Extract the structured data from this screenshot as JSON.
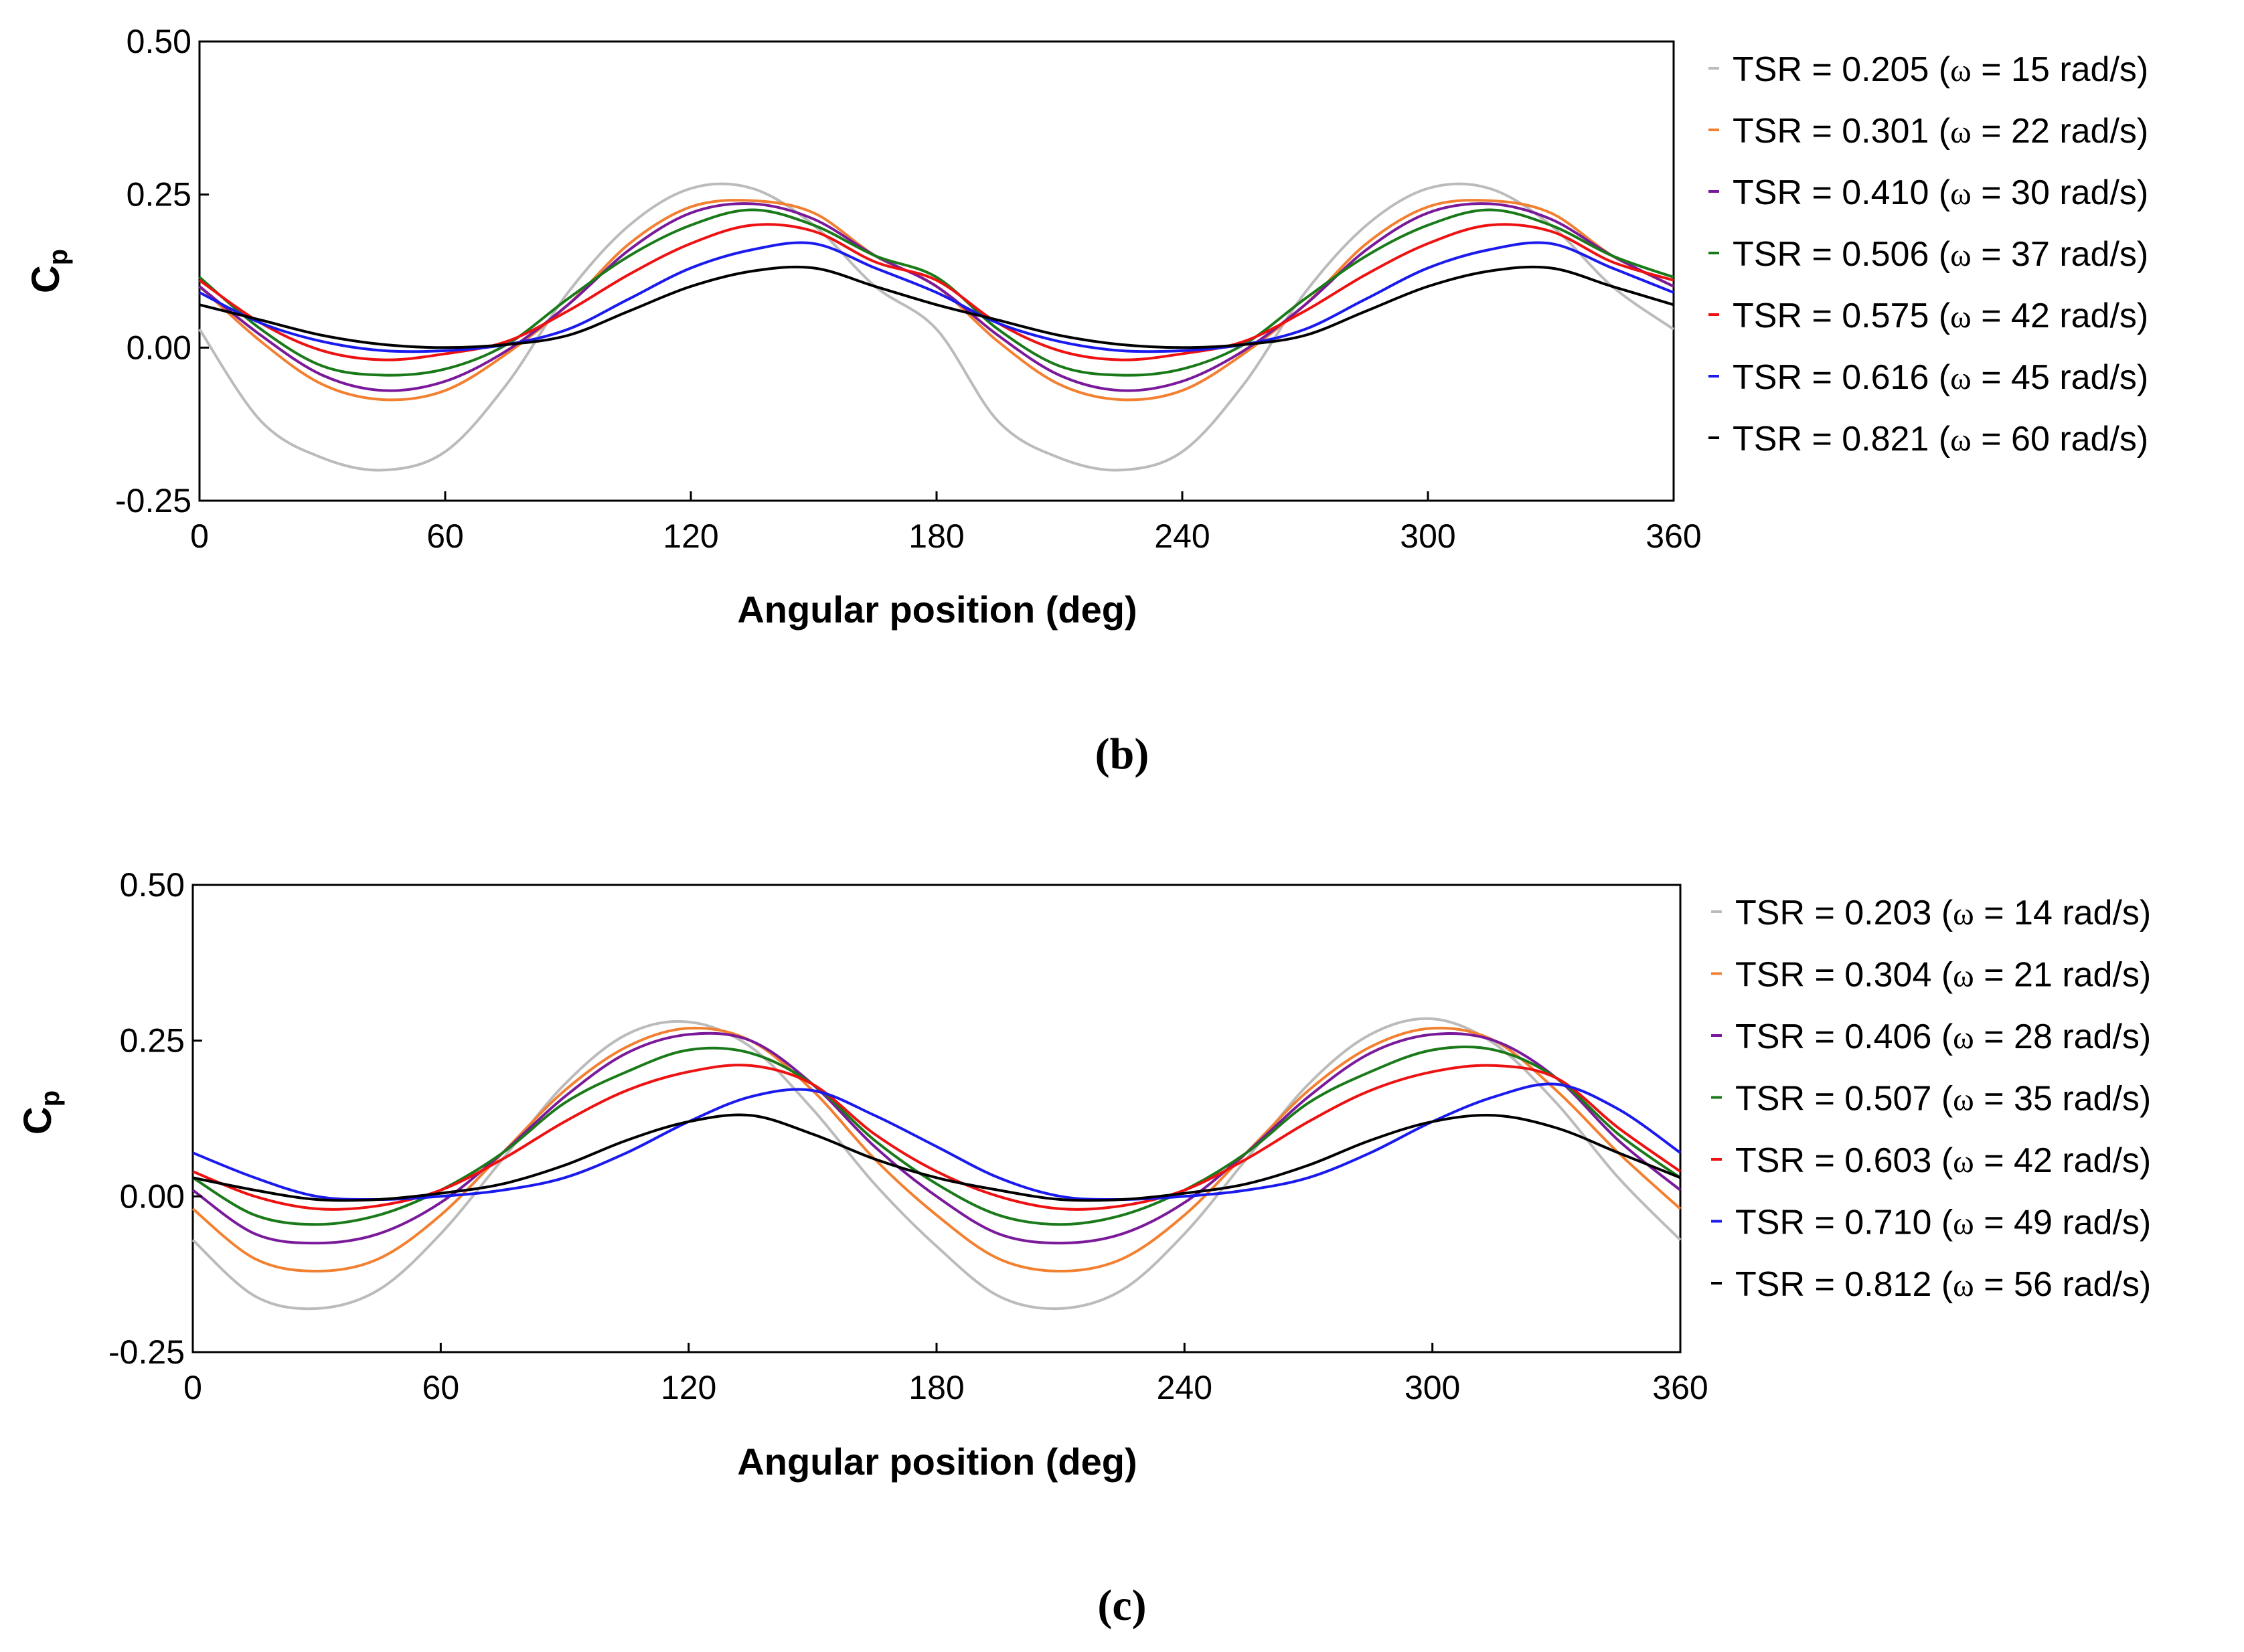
{
  "chart_data": [
    {
      "type": "line",
      "panel_label": "(b)",
      "xlabel": "Angular position (deg)",
      "ylabel": "C",
      "ylabel_sub": "p",
      "xlim": [
        0,
        360
      ],
      "ylim": [
        -0.25,
        0.5
      ],
      "xticks": [
        0,
        60,
        120,
        180,
        240,
        300,
        360
      ],
      "yticks": [
        -0.25,
        0,
        0.25,
        0.5
      ],
      "xtick_labels": [
        "0",
        "60",
        "120",
        "180",
        "240",
        "300",
        "360"
      ],
      "ytick_labels": [
        "-0.25",
        "0.00",
        "0.25",
        "0.50"
      ],
      "x": [
        0,
        15,
        30,
        45,
        60,
        75,
        90,
        105,
        120,
        135,
        150,
        165,
        180,
        195,
        210,
        225,
        240,
        255,
        270,
        285,
        300,
        315,
        330,
        345,
        360
      ],
      "series": [
        {
          "name": "TSR = 0.205",
          "omega_label": "(ω = 15 rad/s)",
          "color": "#bbbbbb",
          "values": [
            0.03,
            -0.12,
            -0.18,
            -0.2,
            -0.17,
            -0.06,
            0.09,
            0.2,
            0.26,
            0.26,
            0.2,
            0.1,
            0.03,
            -0.12,
            -0.18,
            -0.2,
            -0.17,
            -0.06,
            0.09,
            0.2,
            0.26,
            0.26,
            0.2,
            0.1,
            0.03
          ]
        },
        {
          "name": "TSR = 0.301",
          "omega_label": "(ω = 22 rad/s)",
          "color": "#f28030",
          "values": [
            0.1,
            0.01,
            -0.06,
            -0.085,
            -0.07,
            -0.01,
            0.07,
            0.17,
            0.23,
            0.24,
            0.22,
            0.15,
            0.1,
            0.01,
            -0.06,
            -0.085,
            -0.07,
            -0.01,
            0.07,
            0.17,
            0.23,
            0.24,
            0.22,
            0.15,
            0.1
          ]
        },
        {
          "name": "TSR = 0.410",
          "omega_label": "(ω = 30 rad/s)",
          "color": "#7a1a9a",
          "values": [
            0.1,
            0.02,
            -0.045,
            -0.07,
            -0.055,
            -0.005,
            0.07,
            0.16,
            0.22,
            0.235,
            0.21,
            0.15,
            0.1,
            0.02,
            -0.045,
            -0.07,
            -0.055,
            -0.005,
            0.07,
            0.16,
            0.22,
            0.235,
            0.21,
            0.15,
            0.1
          ]
        },
        {
          "name": "TSR = 0.506",
          "omega_label": "(ω = 37 rad/s)",
          "color": "#1a7a1a",
          "values": [
            0.115,
            0.03,
            -0.03,
            -0.045,
            -0.035,
            0.005,
            0.08,
            0.15,
            0.2,
            0.225,
            0.2,
            0.15,
            0.115,
            0.03,
            -0.03,
            -0.045,
            -0.035,
            0.005,
            0.08,
            0.15,
            0.2,
            0.225,
            0.2,
            0.15,
            0.115
          ]
        },
        {
          "name": "TSR = 0.575",
          "omega_label": "(ω = 42 rad/s)",
          "color": "#ee1111",
          "values": [
            0.11,
            0.04,
            -0.005,
            -0.02,
            -0.01,
            0.01,
            0.06,
            0.12,
            0.17,
            0.2,
            0.19,
            0.14,
            0.11,
            0.04,
            -0.005,
            -0.02,
            -0.01,
            0.01,
            0.06,
            0.12,
            0.17,
            0.2,
            0.19,
            0.14,
            0.11
          ]
        },
        {
          "name": "TSR = 0.616",
          "omega_label": "(ω = 45 rad/s)",
          "color": "#1a1aee",
          "values": [
            0.09,
            0.04,
            0.01,
            -0.005,
            -0.005,
            0.005,
            0.03,
            0.08,
            0.13,
            0.16,
            0.17,
            0.13,
            0.09,
            0.04,
            0.01,
            -0.005,
            -0.005,
            0.005,
            0.03,
            0.08,
            0.13,
            0.16,
            0.17,
            0.13,
            0.09
          ]
        },
        {
          "name": "TSR = 0.821",
          "omega_label": "(ω = 60 rad/s)",
          "color": "#000000",
          "values": [
            0.07,
            0.045,
            0.02,
            0.005,
            0.0,
            0.005,
            0.02,
            0.06,
            0.1,
            0.125,
            0.13,
            0.1,
            0.07,
            0.045,
            0.02,
            0.005,
            0.0,
            0.005,
            0.02,
            0.06,
            0.1,
            0.125,
            0.13,
            0.1,
            0.07
          ]
        }
      ]
    },
    {
      "type": "line",
      "panel_label": "(c)",
      "xlabel": "Angular position (deg)",
      "ylabel": "C",
      "ylabel_sub": "p",
      "xlim": [
        0,
        360
      ],
      "ylim": [
        -0.25,
        0.5
      ],
      "xticks": [
        0,
        60,
        120,
        180,
        240,
        300,
        360
      ],
      "yticks": [
        -0.25,
        0,
        0.25,
        0.5
      ],
      "xtick_labels": [
        "0",
        "60",
        "120",
        "180",
        "240",
        "300",
        "360"
      ],
      "ytick_labels": [
        "-0.25",
        "0.00",
        "0.25",
        "0.50"
      ],
      "x": [
        0,
        15,
        30,
        45,
        60,
        75,
        90,
        105,
        120,
        135,
        150,
        165,
        180,
        195,
        210,
        225,
        240,
        255,
        270,
        285,
        300,
        315,
        330,
        345,
        360
      ],
      "series": [
        {
          "name": "TSR = 0.203",
          "omega_label": "(ω = 14 rad/s)",
          "color": "#bbbbbb",
          "values": [
            -0.07,
            -0.16,
            -0.18,
            -0.15,
            -0.06,
            0.06,
            0.18,
            0.26,
            0.28,
            0.24,
            0.14,
            0.02,
            -0.08,
            -0.16,
            -0.18,
            -0.15,
            -0.06,
            0.06,
            0.18,
            0.26,
            0.285,
            0.245,
            0.15,
            0.03,
            -0.07
          ]
        },
        {
          "name": "TSR = 0.304",
          "omega_label": "(ω = 21 rad/s)",
          "color": "#f28030",
          "values": [
            -0.02,
            -0.1,
            -0.12,
            -0.1,
            -0.03,
            0.07,
            0.17,
            0.24,
            0.27,
            0.25,
            0.17,
            0.06,
            -0.03,
            -0.1,
            -0.12,
            -0.1,
            -0.03,
            0.07,
            0.17,
            0.24,
            0.27,
            0.25,
            0.17,
            0.07,
            -0.02
          ]
        },
        {
          "name": "TSR = 0.406",
          "omega_label": "(ω = 28 rad/s)",
          "color": "#7a1a9a",
          "values": [
            0.01,
            -0.06,
            -0.075,
            -0.06,
            -0.01,
            0.07,
            0.16,
            0.23,
            0.26,
            0.25,
            0.18,
            0.08,
            0.0,
            -0.06,
            -0.075,
            -0.06,
            -0.01,
            0.07,
            0.16,
            0.23,
            0.26,
            0.25,
            0.19,
            0.09,
            0.01
          ]
        },
        {
          "name": "TSR = 0.507",
          "omega_label": "(ω = 35 rad/s)",
          "color": "#1a7a1a",
          "values": [
            0.03,
            -0.03,
            -0.045,
            -0.03,
            0.01,
            0.07,
            0.15,
            0.2,
            0.235,
            0.23,
            0.18,
            0.09,
            0.02,
            -0.03,
            -0.045,
            -0.03,
            0.01,
            0.07,
            0.15,
            0.2,
            0.235,
            0.235,
            0.19,
            0.1,
            0.03
          ]
        },
        {
          "name": "TSR = 0.603",
          "omega_label": "(ω = 42 rad/s)",
          "color": "#ee1111",
          "values": [
            0.04,
            0.0,
            -0.02,
            -0.015,
            0.01,
            0.06,
            0.12,
            0.17,
            0.2,
            0.21,
            0.18,
            0.1,
            0.04,
            0.0,
            -0.02,
            -0.015,
            0.01,
            0.06,
            0.12,
            0.17,
            0.2,
            0.21,
            0.19,
            0.11,
            0.04
          ]
        },
        {
          "name": "TSR = 0.710",
          "omega_label": "(ω = 49 rad/s)",
          "color": "#1a1aee",
          "values": [
            0.07,
            0.03,
            0.0,
            -0.005,
            0.0,
            0.01,
            0.03,
            0.07,
            0.12,
            0.16,
            0.17,
            0.13,
            0.08,
            0.03,
            0.0,
            -0.005,
            0.0,
            0.01,
            0.03,
            0.07,
            0.12,
            0.16,
            0.18,
            0.14,
            0.07
          ]
        },
        {
          "name": "TSR = 0.812",
          "omega_label": "(ω = 56 rad/s)",
          "color": "#000000",
          "values": [
            0.03,
            0.01,
            -0.005,
            -0.005,
            0.005,
            0.02,
            0.05,
            0.09,
            0.12,
            0.13,
            0.1,
            0.06,
            0.03,
            0.01,
            -0.005,
            -0.005,
            0.005,
            0.02,
            0.05,
            0.09,
            0.12,
            0.13,
            0.11,
            0.07,
            0.03
          ]
        }
      ]
    }
  ]
}
